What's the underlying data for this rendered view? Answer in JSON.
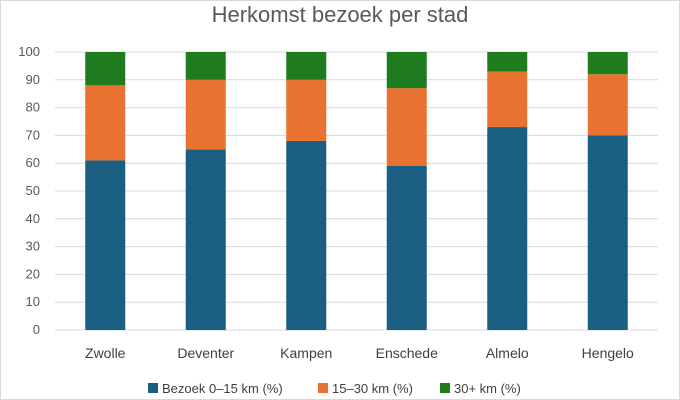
{
  "chart_data": {
    "type": "bar",
    "stacked": true,
    "title": "Herkomst bezoek per stad",
    "categories": [
      "Zwolle",
      "Deventer",
      "Kampen",
      "Enschede",
      "Almelo",
      "Hengelo"
    ],
    "series": [
      {
        "name": "Bezoek 0–15 km (%)",
        "color": "#1a5e82",
        "values": [
          61,
          65,
          68,
          59,
          73,
          70
        ]
      },
      {
        "name": "15–30 km (%)",
        "color": "#e97132",
        "values": [
          27,
          25,
          22,
          28,
          20,
          22
        ]
      },
      {
        "name": "30+ km (%)",
        "color": "#1e7b1e",
        "values": [
          12,
          10,
          10,
          13,
          7,
          8
        ]
      }
    ],
    "ylim": [
      0,
      100
    ],
    "yticks": [
      0,
      10,
      20,
      30,
      40,
      50,
      60,
      70,
      80,
      90,
      100
    ],
    "grid": true,
    "legend_position": "bottom"
  }
}
